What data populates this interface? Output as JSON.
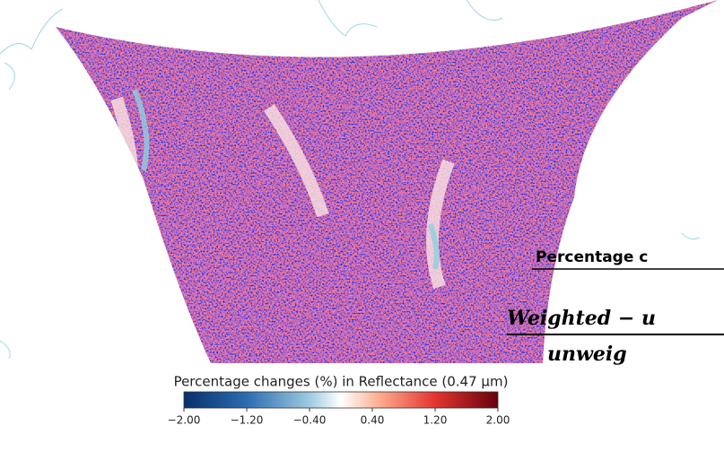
{
  "colorbar": {
    "title": "Percentage changes (%) in Reflectance (0.47 μm)",
    "range": [
      -2,
      2
    ],
    "ticks": [
      {
        "value": -2,
        "label": "−2.00"
      },
      {
        "value": -1.2,
        "label": "−1.20"
      },
      {
        "value": -0.4,
        "label": "−0.40"
      },
      {
        "value": 0.4,
        "label": "0.40"
      },
      {
        "value": 1.2,
        "label": "1.20"
      },
      {
        "value": 2,
        "label": "2.00"
      }
    ]
  },
  "annotation": {
    "heading": "Percentage c",
    "numerator": "Weighted − u",
    "denominator": "unweig"
  }
}
